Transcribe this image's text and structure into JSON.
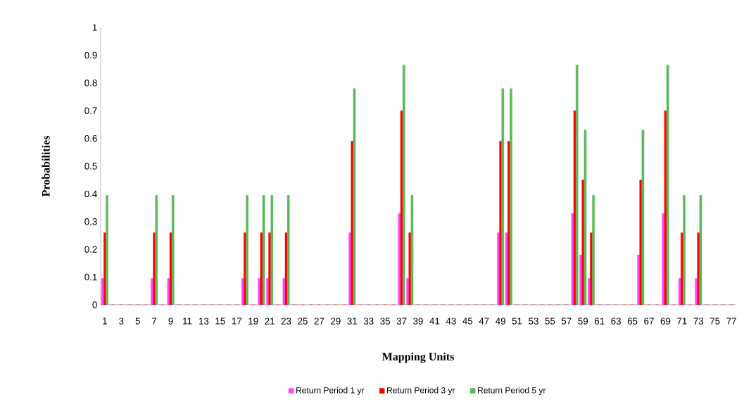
{
  "chart_data": {
    "type": "bar",
    "xlabel": "Mapping Units",
    "ylabel": "Probabilities",
    "categories": [
      "1",
      null,
      "3",
      null,
      "5",
      null,
      "7",
      null,
      "9",
      null,
      "11",
      null,
      "13",
      null,
      "15",
      null,
      "17",
      null,
      "19",
      null,
      "21",
      null,
      "23",
      null,
      "25",
      null,
      "27",
      null,
      "29",
      null,
      "31",
      null,
      "33",
      null,
      "35",
      null,
      "37",
      null,
      "39",
      null,
      "41",
      null,
      "43",
      null,
      "45",
      null,
      "47",
      null,
      "49",
      null,
      "51",
      null,
      "53",
      null,
      "55",
      null,
      "57",
      null,
      "59",
      null,
      "61",
      null,
      "63",
      null,
      "65",
      null,
      "67",
      null,
      "69",
      null,
      "71",
      null,
      "73",
      null,
      "75",
      null,
      "77"
    ],
    "series": [
      {
        "name": "Return Period 1 yr",
        "color": "#ff44ff",
        "values": [
          0.095,
          0,
          0,
          0,
          0,
          0,
          0.095,
          0,
          0.095,
          0,
          0,
          0,
          0,
          0,
          0,
          0,
          0,
          0.095,
          0,
          0.095,
          0.095,
          0,
          0.095,
          0,
          0,
          0,
          0,
          0,
          0,
          0,
          0.26,
          0,
          0,
          0,
          0,
          0,
          0.33,
          0.095,
          0,
          0,
          0,
          0,
          0,
          0,
          0,
          0,
          0,
          0,
          0.26,
          0.26,
          0,
          0,
          0,
          0,
          0,
          0,
          0,
          0.33,
          0.18,
          0.095,
          0,
          0,
          0,
          0,
          0,
          0.18,
          0,
          0,
          0.33,
          0,
          0.095,
          0,
          0.095,
          0,
          0,
          0,
          0
        ]
      },
      {
        "name": "Return Period 3 yr",
        "color": "#ff0000",
        "values": [
          0.26,
          0,
          0,
          0,
          0,
          0,
          0.26,
          0,
          0.26,
          0,
          0,
          0,
          0,
          0,
          0,
          0,
          0,
          0.26,
          0,
          0.26,
          0.26,
          0,
          0.26,
          0,
          0,
          0,
          0,
          0,
          0,
          0,
          0.59,
          0,
          0,
          0,
          0,
          0,
          0.7,
          0.26,
          0,
          0,
          0,
          0,
          0,
          0,
          0,
          0,
          0,
          0,
          0.59,
          0.59,
          0,
          0,
          0,
          0,
          0,
          0,
          0,
          0.7,
          0.45,
          0.26,
          0,
          0,
          0,
          0,
          0,
          0.45,
          0,
          0,
          0.7,
          0,
          0.26,
          0,
          0.26,
          0,
          0,
          0,
          0
        ]
      },
      {
        "name": "Return Period 5 yr",
        "color": "#5cb85c",
        "values": [
          0.395,
          0,
          0,
          0,
          0,
          0,
          0.395,
          0,
          0.395,
          0,
          0,
          0,
          0,
          0,
          0,
          0,
          0,
          0.395,
          0,
          0.395,
          0.395,
          0,
          0.395,
          0,
          0,
          0,
          0,
          0,
          0,
          0,
          0.78,
          0,
          0,
          0,
          0,
          0,
          0.865,
          0.395,
          0,
          0,
          0,
          0,
          0,
          0,
          0,
          0,
          0,
          0,
          0.78,
          0.78,
          0,
          0,
          0,
          0,
          0,
          0,
          0,
          0.865,
          0.63,
          0.395,
          0,
          0,
          0,
          0,
          0,
          0.63,
          0,
          0,
          0.865,
          0,
          0.395,
          0,
          0.395,
          0,
          0,
          0,
          0
        ]
      }
    ],
    "ylim": [
      0,
      1
    ],
    "yticks": [
      0,
      0.1,
      0.2,
      0.3,
      0.4,
      0.5,
      0.6,
      0.7,
      0.8,
      0.9,
      1
    ],
    "legend": "bottom"
  }
}
